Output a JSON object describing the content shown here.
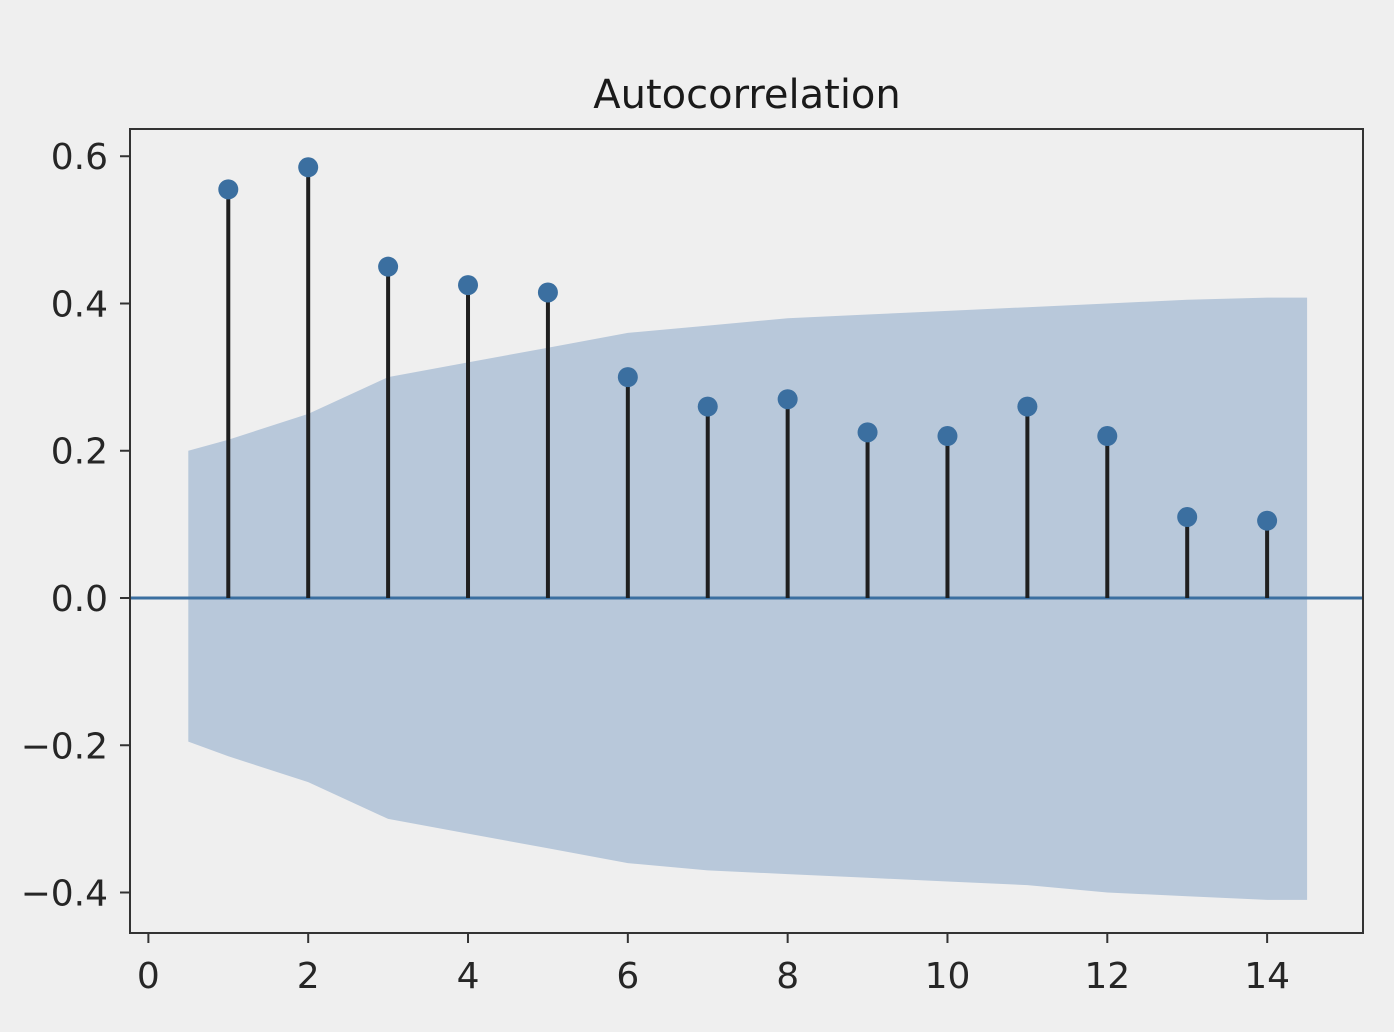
{
  "chart_data": {
    "type": "stem",
    "title": "Autocorrelation",
    "xlabel": "",
    "ylabel": "",
    "xlim": [
      -0.23,
      15.2
    ],
    "ylim": [
      -0.455,
      0.637
    ],
    "x_ticks": [
      0,
      2,
      4,
      6,
      8,
      10,
      12,
      14
    ],
    "x_tick_labels": [
      "0",
      "2",
      "4",
      "6",
      "8",
      "10",
      "12",
      "14"
    ],
    "y_ticks": [
      0.6,
      0.4,
      0.2,
      0.0,
      -0.2,
      -0.4
    ],
    "y_tick_labels": [
      "0.6",
      "0.4",
      "0.2",
      "0.0",
      "−0.2",
      "−0.4"
    ],
    "lags": [
      1,
      2,
      3,
      4,
      5,
      6,
      7,
      8,
      9,
      10,
      11,
      12,
      13,
      14
    ],
    "values": [
      0.555,
      0.585,
      0.45,
      0.425,
      0.415,
      0.3,
      0.26,
      0.27,
      0.225,
      0.22,
      0.26,
      0.22,
      0.11,
      0.105
    ],
    "confidence_band": {
      "x": [
        0.5,
        1,
        2,
        3,
        4,
        5,
        6,
        7,
        8,
        9,
        10,
        11,
        12,
        13,
        14,
        14.5
      ],
      "upper": [
        0.2,
        0.215,
        0.25,
        0.3,
        0.32,
        0.34,
        0.36,
        0.37,
        0.38,
        0.385,
        0.39,
        0.395,
        0.4,
        0.405,
        0.408,
        0.408
      ],
      "lower": [
        -0.195,
        -0.215,
        -0.25,
        -0.3,
        -0.32,
        -0.34,
        -0.36,
        -0.37,
        -0.375,
        -0.38,
        -0.385,
        -0.39,
        -0.4,
        -0.405,
        -0.41,
        -0.41
      ]
    },
    "zero_line": 0,
    "grid": false,
    "colors": {
      "marker": "#3b6fa0",
      "stem": "#1f1f1f",
      "band": "#b8c8da",
      "zero_line": "#3b6fa0",
      "axes": "#333333",
      "background": "#efefef"
    }
  }
}
